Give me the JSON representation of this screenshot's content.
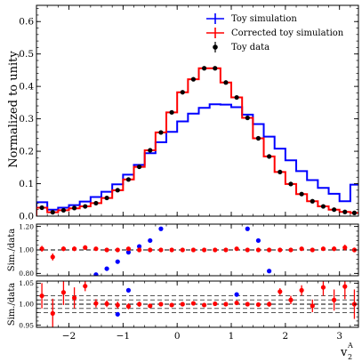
{
  "chart_data": [
    {
      "type": "step-histogram",
      "panel": "main",
      "ylabel": "Normalized to unity",
      "xlim": [
        -2.6,
        3.35
      ],
      "ylim": [
        0,
        0.65
      ],
      "yticks": [
        0.0,
        0.1,
        0.2,
        0.3,
        0.4,
        0.5,
        0.6
      ],
      "ytick_labels": [
        "0.0",
        "0.1",
        "0.2",
        "0.3",
        "0.4",
        "0.5",
        "0.6"
      ],
      "grid": false,
      "legend_position": "top-right",
      "bin_edges": [
        -2.6,
        -2.4,
        -2.2,
        -2.0,
        -1.8,
        -1.6,
        -1.4,
        -1.2,
        -1.0,
        -0.8,
        -0.6,
        -0.4,
        -0.2,
        0.0,
        0.2,
        0.4,
        0.6,
        0.8,
        1.0,
        1.2,
        1.4,
        1.6,
        1.8,
        2.0,
        2.2,
        2.4,
        2.6,
        2.8,
        3.0,
        3.2,
        3.35
      ],
      "series": [
        {
          "name": "Toy simulation",
          "color": "#0000ff",
          "style": "step",
          "values": [
            0.043,
            0.02,
            0.026,
            0.034,
            0.045,
            0.059,
            0.075,
            0.098,
            0.128,
            0.158,
            0.194,
            0.228,
            0.26,
            0.292,
            0.316,
            0.334,
            0.345,
            0.344,
            0.336,
            0.313,
            0.284,
            0.245,
            0.208,
            0.172,
            0.139,
            0.111,
            0.087,
            0.069,
            0.046,
            0.097
          ]
        },
        {
          "name": "Corrected toy simulation",
          "color": "#ff0000",
          "style": "step",
          "values": [
            0.026,
            0.012,
            0.018,
            0.024,
            0.03,
            0.04,
            0.056,
            0.08,
            0.113,
            0.152,
            0.203,
            0.258,
            0.32,
            0.382,
            0.422,
            0.456,
            0.456,
            0.412,
            0.366,
            0.303,
            0.24,
            0.184,
            0.136,
            0.099,
            0.068,
            0.046,
            0.03,
            0.02,
            0.013,
            0.01
          ]
        },
        {
          "name": "Toy data",
          "color": "#000000",
          "style": "points",
          "x": [
            -2.5,
            -2.3,
            -2.1,
            -1.9,
            -1.7,
            -1.5,
            -1.3,
            -1.1,
            -0.9,
            -0.7,
            -0.5,
            -0.3,
            -0.1,
            0.1,
            0.3,
            0.5,
            0.7,
            0.9,
            1.1,
            1.3,
            1.5,
            1.7,
            1.9,
            2.1,
            2.3,
            2.5,
            2.7,
            2.9,
            3.1,
            3.275
          ],
          "values": [
            0.026,
            0.012,
            0.018,
            0.025,
            0.03,
            0.04,
            0.056,
            0.08,
            0.113,
            0.152,
            0.203,
            0.258,
            0.32,
            0.382,
            0.422,
            0.456,
            0.456,
            0.412,
            0.366,
            0.303,
            0.24,
            0.184,
            0.136,
            0.099,
            0.068,
            0.046,
            0.03,
            0.02,
            0.013,
            0.01
          ]
        }
      ]
    },
    {
      "type": "scatter",
      "panel": "ratio-1",
      "ylabel": "Sim./data",
      "xlim": [
        -2.6,
        3.35
      ],
      "ylim": [
        0.78,
        1.22
      ],
      "yticks": [
        0.8,
        1.0,
        1.2
      ],
      "ytick_labels": [
        "0.80",
        "1.00",
        "1.20"
      ],
      "reference_line": 1.0,
      "series": [
        {
          "name": "Toy simulation / data",
          "color": "#0000ff",
          "x": [
            -1.5,
            -1.3,
            -1.1,
            -0.9,
            -0.7,
            -0.5,
            -0.3,
            1.3,
            1.5,
            1.7
          ],
          "values": [
            0.79,
            0.84,
            0.9,
            0.98,
            1.03,
            1.08,
            1.18,
            1.18,
            1.08,
            0.82
          ]
        },
        {
          "name": "Corrected toy simulation / data",
          "color": "#ff0000",
          "x": [
            -2.5,
            -2.3,
            -2.1,
            -1.9,
            -1.7,
            -1.5,
            -1.3,
            -1.1,
            -0.9,
            -0.7,
            -0.5,
            -0.3,
            -0.1,
            0.1,
            0.3,
            0.5,
            0.7,
            0.9,
            1.1,
            1.3,
            1.5,
            1.7,
            1.9,
            2.1,
            2.3,
            2.5,
            2.7,
            2.9,
            3.1,
            3.275
          ],
          "values": [
            1.01,
            0.94,
            1.01,
            1.01,
            1.02,
            1.01,
            1.0,
            1.0,
            1.01,
            1.0,
            1.0,
            1.0,
            1.0,
            1.0,
            1.0,
            1.0,
            1.0,
            1.0,
            1.01,
            1.0,
            1.0,
            1.0,
            1.0,
            1.0,
            1.01,
            1.0,
            1.01,
            1.01,
            1.02,
            1.0
          ],
          "errors": [
            0.025,
            0.03,
            0.02,
            0.02,
            0.02,
            0.015,
            0.012,
            0.01,
            0.008,
            0.006,
            0.005,
            0.004,
            0.004,
            0.003,
            0.003,
            0.003,
            0.003,
            0.003,
            0.004,
            0.004,
            0.005,
            0.006,
            0.008,
            0.01,
            0.012,
            0.015,
            0.018,
            0.02,
            0.025,
            0.02
          ]
        }
      ]
    },
    {
      "type": "scatter",
      "panel": "ratio-2",
      "ylabel": "Sim./data",
      "xlabel": "v",
      "xlabel_sub": "2",
      "xlabel_sup": "A",
      "xlim": [
        -2.6,
        3.35
      ],
      "ylim": [
        0.945,
        1.055
      ],
      "yticks": [
        0.95,
        1.0,
        1.05
      ],
      "ytick_labels": [
        "0.95",
        "1.00",
        "1.05"
      ],
      "xticks": [
        -2,
        -1,
        0,
        1,
        2,
        3
      ],
      "xtick_labels": [
        "−2",
        "−1",
        "0",
        "1",
        "2",
        "3"
      ],
      "reference_line": 1.0,
      "band_lines": [
        0.98,
        0.99,
        1.01,
        1.02
      ],
      "series": [
        {
          "name": "Toy simulation / data",
          "color": "#0000ff",
          "x": [
            -1.1,
            -0.9,
            1.1
          ],
          "values": [
            0.976,
            1.033,
            1.023
          ]
        },
        {
          "name": "Corrected toy simulation / data",
          "color": "#ff0000",
          "x": [
            -2.5,
            -2.3,
            -2.1,
            -1.9,
            -1.7,
            -1.5,
            -1.3,
            -1.1,
            -0.9,
            -0.7,
            -0.5,
            -0.3,
            -0.1,
            0.1,
            0.3,
            0.5,
            0.7,
            0.9,
            1.1,
            1.3,
            1.5,
            1.7,
            1.9,
            2.1,
            2.3,
            2.5,
            2.7,
            2.9,
            3.1,
            3.275
          ],
          "values": [
            1.02,
            0.978,
            1.028,
            1.015,
            1.043,
            1.002,
            1.001,
            0.998,
            0.995,
            1.0,
            0.996,
            1.0,
            0.998,
            1.0,
            1.002,
            0.998,
            1.001,
            1.0,
            1.003,
            1.0,
            0.999,
            1.0,
            1.03,
            1.01,
            1.033,
            0.996,
            1.04,
            1.01,
            1.042,
            1.0
          ],
          "errors": [
            0.03,
            0.035,
            0.03,
            0.025,
            0.012,
            0.01,
            0.008,
            0.008,
            0.007,
            0.006,
            0.005,
            0.004,
            0.004,
            0.003,
            0.003,
            0.003,
            0.003,
            0.003,
            0.004,
            0.004,
            0.005,
            0.006,
            0.008,
            0.01,
            0.012,
            0.015,
            0.02,
            0.025,
            0.03,
            0.035
          ]
        }
      ]
    }
  ],
  "legend": {
    "items": [
      {
        "label": "Toy simulation",
        "color": "#0000ff",
        "marker": "cross"
      },
      {
        "label": "Corrected toy simulation",
        "color": "#ff0000",
        "marker": "cross"
      },
      {
        "label": "Toy data",
        "color": "#000000",
        "marker": "dot"
      }
    ]
  }
}
